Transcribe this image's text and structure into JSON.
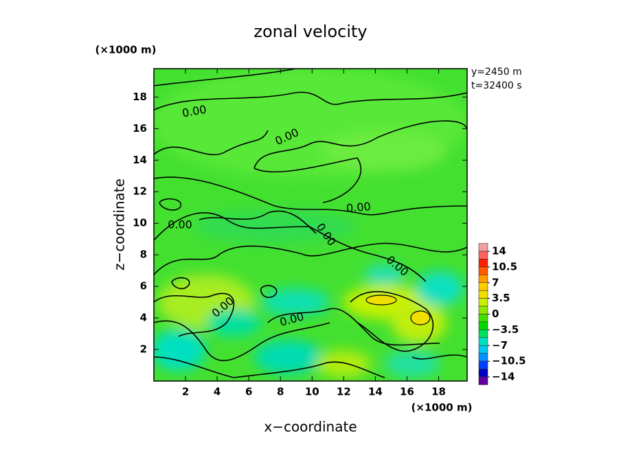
{
  "chart_data": {
    "type": "contour",
    "title": "zonal velocity",
    "xlabel": "x−coordinate",
    "ylabel": "z−coordinate",
    "x_unit": "(×1000 m)",
    "y_unit": "(×1000 m)",
    "annotations": [
      "y=2450 m",
      "t=32400 s"
    ],
    "xlim": [
      0,
      19.8
    ],
    "ylim": [
      0,
      19.8
    ],
    "xticks": [
      2,
      4,
      6,
      8,
      10,
      12,
      14,
      16,
      18
    ],
    "yticks": [
      2,
      4,
      6,
      8,
      10,
      12,
      14,
      16,
      18
    ],
    "contour_labels": [
      "0.00",
      "0.00",
      "0.00",
      "0.00",
      "0.00",
      "0.00",
      "0.00",
      "0.00"
    ],
    "colorbar": {
      "ticks": [
        14,
        {
          "value": 10.5,
          "label": "10.5"
        },
        7,
        {
          "value": 3.5,
          "label": "3.5"
        },
        0,
        {
          "value": -3.5,
          "label": "−3.5"
        },
        {
          "value": -7,
          "label": "−7"
        },
        {
          "value": -10.5,
          "label": "−10.5"
        },
        {
          "value": -14,
          "label": "−14"
        }
      ],
      "colors": [
        "#f0a0a0",
        "#ff6060",
        "#ff2000",
        "#ff5a00",
        "#ff9900",
        "#ffcc00",
        "#f0e000",
        "#c8f000",
        "#90e800",
        "#40e000",
        "#00d800",
        "#00e060",
        "#00e0c0",
        "#00c8f0",
        "#0090ff",
        "#0040ff",
        "#0000c0",
        "#6000a0"
      ]
    }
  }
}
